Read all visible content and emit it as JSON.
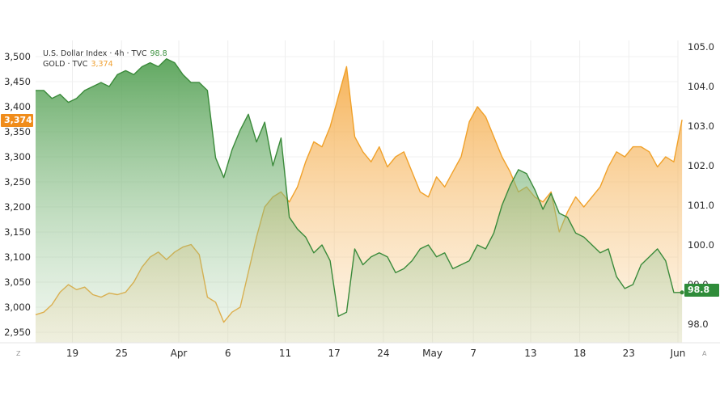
{
  "legend": {
    "usd_label": "U.S. Dollar Index · 4h · TVC",
    "usd_value": "98.8",
    "gold_label": "GOLD · TVC",
    "gold_value": "3,374"
  },
  "badges": {
    "gold": "3,374",
    "usd": "98.8"
  },
  "corners": {
    "left": "Z",
    "right": "A"
  },
  "colors": {
    "usd_line": "#3a8a3a",
    "usd_fill": "#5aa75a",
    "gold_line": "#f0a12a",
    "gold_fill": "#f6b04a",
    "gold_badge": "#f08c1a",
    "usd_badge": "#2f8c3a"
  },
  "chart_data": {
    "type": "area",
    "grid": true,
    "legend_position": "top-left",
    "left_axis": {
      "series": "GOLD · TVC",
      "ylim": [
        2920,
        3520
      ],
      "ticks": [
        2950,
        3000,
        3050,
        3100,
        3150,
        3200,
        3250,
        3300,
        3350,
        3400,
        3450,
        3500
      ],
      "tick_labels": [
        "2,950",
        "3,000",
        "3,050",
        "3,100",
        "3,150",
        "3,200",
        "3,250",
        "3,300",
        "3,350",
        "3,400",
        "3,450",
        "3,500"
      ]
    },
    "right_axis": {
      "series": "U.S. Dollar Index · 4h · TVC",
      "ylim": [
        97.8,
        105.15
      ],
      "ticks": [
        98.0,
        99.0,
        100.0,
        101.0,
        102.0,
        103.0,
        104.0,
        105.0
      ],
      "tick_labels": [
        "98.0",
        "99.0",
        "100.0",
        "101.0",
        "102.0",
        "103.0",
        "104.0",
        "105.0"
      ]
    },
    "x_axis": {
      "range": [
        -1.5,
        77
      ],
      "ticks": [
        3,
        9,
        16,
        22,
        29,
        35,
        41,
        47,
        52,
        59,
        65,
        71,
        77
      ],
      "tick_labels": [
        "19",
        "25",
        "Apr",
        "6",
        "11",
        "17",
        "24",
        "May",
        "7",
        "13",
        "18",
        "23",
        "Jun"
      ]
    },
    "series": [
      {
        "name": "U.S. Dollar Index · 4h · TVC",
        "axis": "right",
        "x": [
          -1.5,
          -0.5,
          0.5,
          1.5,
          2.5,
          3.5,
          4.5,
          5.5,
          6.5,
          7.5,
          8.5,
          9.5,
          10.5,
          11.5,
          12.5,
          13.5,
          14.5,
          15.5,
          16.5,
          17.5,
          18.5,
          19.5,
          20.5,
          21.5,
          22.5,
          23.5,
          24.5,
          25.5,
          26.5,
          27.5,
          28.5,
          29.5,
          30.5,
          31.5,
          32.5,
          33.5,
          34.5,
          35.5,
          36.5,
          37.5,
          38.5,
          39.5,
          40.5,
          41.5,
          42.5,
          43.5,
          44.5,
          45.5,
          46.5,
          47.5,
          48.5,
          49.5,
          50.5,
          51.5,
          52.5,
          53.5,
          54.5,
          55.5,
          56.5,
          57.5,
          58.5,
          59.5,
          60.5,
          61.5,
          62.5,
          63.5,
          64.5,
          65.5,
          66.5,
          67.5,
          68.5,
          69.5,
          70.5,
          71.5,
          72.5,
          73.5,
          74.5,
          75.5,
          76.5,
          77.5
        ],
        "values": [
          103.9,
          103.9,
          103.7,
          103.8,
          103.6,
          103.7,
          103.9,
          104.0,
          104.1,
          104.0,
          104.3,
          104.4,
          104.3,
          104.5,
          104.6,
          104.5,
          104.7,
          104.6,
          104.3,
          104.1,
          104.1,
          103.9,
          102.2,
          101.7,
          102.4,
          102.9,
          103.3,
          102.6,
          103.1,
          102.0,
          102.7,
          100.7,
          100.4,
          100.2,
          99.8,
          100.0,
          99.6,
          98.2,
          98.3,
          99.9,
          99.5,
          99.7,
          99.8,
          99.7,
          99.3,
          99.4,
          99.6,
          99.9,
          100.0,
          99.7,
          99.8,
          99.4,
          99.5,
          99.6,
          100.0,
          99.9,
          100.3,
          101.0,
          101.5,
          101.9,
          101.8,
          101.4,
          100.9,
          101.3,
          100.8,
          100.7,
          100.3,
          100.2,
          100.0,
          99.8,
          99.9,
          99.2,
          98.9,
          99.0,
          99.5,
          99.7,
          99.9,
          99.6,
          98.8,
          98.8
        ]
      },
      {
        "name": "GOLD · TVC",
        "axis": "left",
        "x": [
          -1.5,
          -0.5,
          0.5,
          1.5,
          2.5,
          3.5,
          4.5,
          5.5,
          6.5,
          7.5,
          8.5,
          9.5,
          10.5,
          11.5,
          12.5,
          13.5,
          14.5,
          15.5,
          16.5,
          17.5,
          18.5,
          19.5,
          20.5,
          21.5,
          22.5,
          23.5,
          24.5,
          25.5,
          26.5,
          27.5,
          28.5,
          29.5,
          30.5,
          31.5,
          32.5,
          33.5,
          34.5,
          35.5,
          36.5,
          37.5,
          38.5,
          39.5,
          40.5,
          41.5,
          42.5,
          43.5,
          44.5,
          45.5,
          46.5,
          47.5,
          48.5,
          49.5,
          50.5,
          51.5,
          52.5,
          53.5,
          54.5,
          55.5,
          56.5,
          57.5,
          58.5,
          59.5,
          60.5,
          61.5,
          62.5,
          63.5,
          64.5,
          65.5,
          66.5,
          67.5,
          68.5,
          69.5,
          70.5,
          71.5,
          72.5,
          73.5,
          74.5,
          75.5,
          76.5,
          77.5
        ],
        "values": [
          2985,
          2990,
          3005,
          3030,
          3045,
          3035,
          3040,
          3025,
          3020,
          3028,
          3025,
          3030,
          3050,
          3080,
          3100,
          3110,
          3095,
          3110,
          3120,
          3125,
          3105,
          3020,
          3010,
          2970,
          2990,
          3000,
          3070,
          3140,
          3200,
          3220,
          3230,
          3210,
          3240,
          3290,
          3330,
          3320,
          3360,
          3420,
          3480,
          3340,
          3310,
          3290,
          3320,
          3280,
          3300,
          3310,
          3270,
          3230,
          3220,
          3260,
          3240,
          3270,
          3300,
          3370,
          3400,
          3380,
          3340,
          3300,
          3270,
          3230,
          3240,
          3220,
          3210,
          3230,
          3150,
          3190,
          3220,
          3200,
          3220,
          3240,
          3280,
          3310,
          3300,
          3320,
          3320,
          3310,
          3280,
          3300,
          3290,
          3374
        ]
      }
    ]
  }
}
